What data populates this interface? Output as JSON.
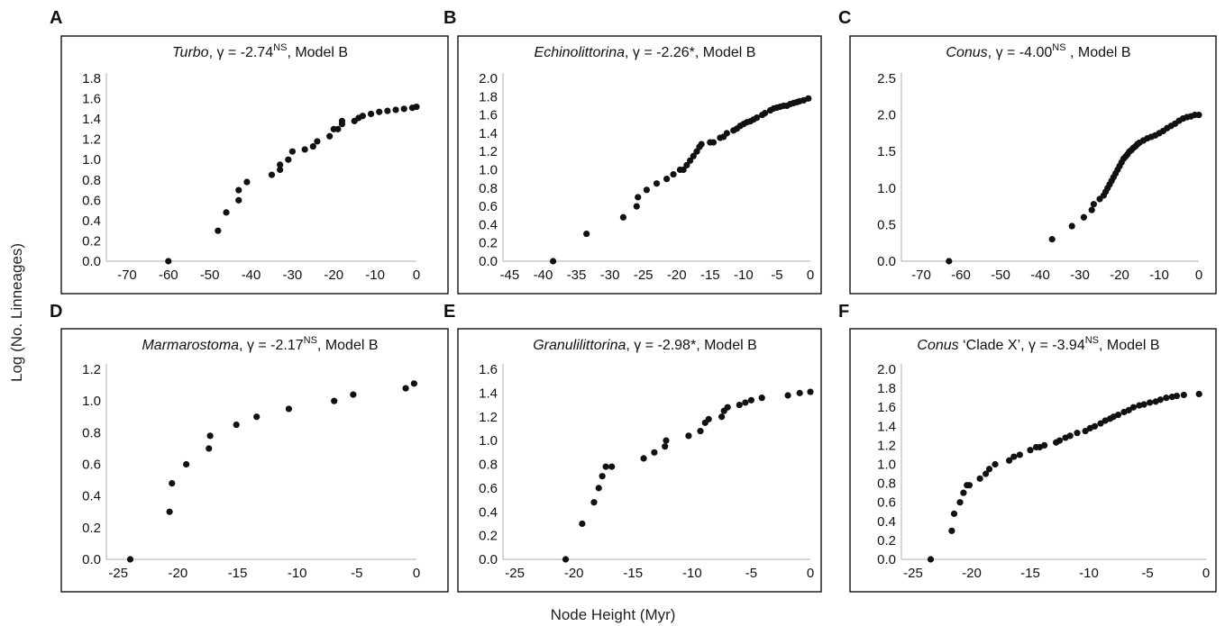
{
  "figure": {
    "ylabel": "Log (No. Linneages)",
    "xlabel": "Node Height (Myr)"
  },
  "chart_data": [
    {
      "type": "scatter",
      "panel": "A",
      "title_italic": "Turbo",
      "title_rest": ", γ = -2.74",
      "title_sup": "NS",
      "title_model": ",  Model B",
      "xlim": [
        -75,
        0
      ],
      "ylim": [
        0,
        1.8
      ],
      "xticks": [
        -70,
        -60,
        -50,
        -40,
        -30,
        -20,
        -10,
        0
      ],
      "yticks": [
        0.0,
        0.2,
        0.4,
        0.6,
        0.8,
        1.0,
        1.2,
        1.4,
        1.6,
        1.8
      ],
      "ytick_decimals": 1,
      "series": [
        {
          "x": [
            -60,
            -48,
            -46,
            -43,
            -43,
            -41,
            -35,
            -33,
            -33,
            -31,
            -30,
            -27,
            -25,
            -24,
            -21,
            -20,
            -19,
            -18,
            -18,
            -15,
            -14,
            -13,
            -11,
            -9,
            -7,
            -5,
            -3,
            -1,
            0
          ],
          "y": [
            0.0,
            0.3,
            0.48,
            0.6,
            0.7,
            0.78,
            0.85,
            0.9,
            0.95,
            1.0,
            1.08,
            1.1,
            1.13,
            1.18,
            1.23,
            1.3,
            1.3,
            1.35,
            1.38,
            1.38,
            1.41,
            1.43,
            1.45,
            1.47,
            1.48,
            1.49,
            1.5,
            1.51,
            1.52
          ]
        }
      ]
    },
    {
      "type": "scatter",
      "panel": "B",
      "title_italic": "Echinolittorina",
      "title_rest": ", γ = -2.26*",
      "title_sup": "",
      "title_model": ",  Model B",
      "xlim": [
        -46,
        0
      ],
      "ylim": [
        0,
        2.0
      ],
      "xticks": [
        -45,
        -40,
        -35,
        -30,
        -25,
        -20,
        -15,
        -10,
        -5,
        0
      ],
      "yticks": [
        0.0,
        0.2,
        0.4,
        0.6,
        0.8,
        1.0,
        1.2,
        1.4,
        1.6,
        1.8,
        2.0
      ],
      "ytick_decimals": 1,
      "series": [
        {
          "x": [
            -38.5,
            -33.5,
            -28,
            -26,
            -25.8,
            -24.5,
            -23,
            -21.5,
            -20.5,
            -19.5,
            -19,
            -18.5,
            -18,
            -17.5,
            -17,
            -16.6,
            -16.3,
            -15,
            -14.5,
            -13.5,
            -13,
            -12.5,
            -11.5,
            -11,
            -10.5,
            -10,
            -9.5,
            -9,
            -8.5,
            -8,
            -7.2,
            -6.8,
            -6,
            -5.5,
            -5,
            -4.5,
            -4,
            -3.5,
            -3,
            -2.5,
            -2,
            -1.6,
            -1,
            -0.3
          ],
          "y": [
            0.0,
            0.3,
            0.48,
            0.6,
            0.7,
            0.78,
            0.85,
            0.9,
            0.95,
            1.0,
            1.0,
            1.05,
            1.1,
            1.15,
            1.2,
            1.25,
            1.28,
            1.3,
            1.3,
            1.35,
            1.36,
            1.4,
            1.43,
            1.45,
            1.48,
            1.5,
            1.52,
            1.53,
            1.55,
            1.57,
            1.6,
            1.62,
            1.65,
            1.67,
            1.68,
            1.69,
            1.7,
            1.7,
            1.72,
            1.73,
            1.74,
            1.75,
            1.76,
            1.78
          ]
        }
      ]
    },
    {
      "type": "scatter",
      "panel": "C",
      "title_italic": "Conus",
      "title_rest": ", γ = -4.00",
      "title_sup": "NS",
      "title_model": " ,  Model B",
      "xlim": [
        -75,
        0
      ],
      "ylim": [
        0,
        2.5
      ],
      "xticks": [
        -70,
        -60,
        -50,
        -40,
        -30,
        -20,
        -10,
        0
      ],
      "yticks": [
        0.0,
        0.5,
        1.0,
        1.5,
        2.0,
        2.5
      ],
      "ytick_decimals": 1,
      "series": [
        {
          "x": [
            -63,
            -37,
            -32,
            -29,
            -27,
            -26.5,
            -25,
            -24,
            -23.5,
            -23,
            -22.5,
            -22,
            -21.5,
            -21,
            -20.5,
            -20,
            -19.5,
            -19,
            -18.5,
            -18,
            -17.5,
            -17,
            -16.5,
            -16,
            -15.5,
            -15,
            -14,
            -13,
            -12,
            -11,
            -10,
            -9,
            -8,
            -7,
            -6,
            -5,
            -4,
            -3,
            -2,
            -1,
            0
          ],
          "y": [
            0.0,
            0.3,
            0.48,
            0.6,
            0.7,
            0.78,
            0.85,
            0.9,
            0.95,
            1.0,
            1.05,
            1.1,
            1.15,
            1.2,
            1.25,
            1.3,
            1.35,
            1.4,
            1.43,
            1.46,
            1.5,
            1.52,
            1.55,
            1.57,
            1.6,
            1.62,
            1.65,
            1.68,
            1.7,
            1.72,
            1.75,
            1.78,
            1.82,
            1.85,
            1.88,
            1.92,
            1.95,
            1.97,
            1.98,
            2.0,
            2.0
          ]
        }
      ]
    },
    {
      "type": "scatter",
      "panel": "D",
      "title_italic": "Marmarostoma",
      "title_rest": ", γ = -2.17",
      "title_sup": "NS",
      "title_model": ",  Model B",
      "xlim": [
        -26,
        0
      ],
      "ylim": [
        0,
        1.2
      ],
      "xticks": [
        -25,
        -20,
        -15,
        -10,
        -5,
        0
      ],
      "yticks": [
        0.0,
        0.2,
        0.4,
        0.6,
        0.8,
        1.0,
        1.2
      ],
      "ytick_decimals": 1,
      "series": [
        {
          "x": [
            -24,
            -20.7,
            -20.5,
            -19.3,
            -17.4,
            -17.3,
            -15.1,
            -13.4,
            -10.7,
            -6.9,
            -5.3,
            -0.9,
            -0.2
          ],
          "y": [
            0.0,
            0.3,
            0.48,
            0.6,
            0.7,
            0.78,
            0.85,
            0.9,
            0.95,
            1.0,
            1.04,
            1.08,
            1.11
          ]
        }
      ]
    },
    {
      "type": "scatter",
      "panel": "E",
      "title_italic": "Granulilittorina",
      "title_rest": ", γ = -2.98*",
      "title_sup": "",
      "title_model": ",  Model B",
      "xlim": [
        -26,
        0
      ],
      "ylim": [
        0,
        1.6
      ],
      "xticks": [
        -25,
        -20,
        -15,
        -10,
        -5,
        0
      ],
      "yticks": [
        0.0,
        0.2,
        0.4,
        0.6,
        0.8,
        1.0,
        1.2,
        1.4,
        1.6
      ],
      "ytick_decimals": 1,
      "series": [
        {
          "x": [
            -20.7,
            -19.3,
            -18.3,
            -17.9,
            -17.6,
            -17.3,
            -16.8,
            -14.1,
            -13.2,
            -12.3,
            -12.2,
            -10.3,
            -9.3,
            -8.9,
            -8.6,
            -7.5,
            -7.3,
            -7.0,
            -6.0,
            -5.5,
            -5.0,
            -4.1,
            -1.9,
            -0.9,
            0
          ],
          "y": [
            0.0,
            0.3,
            0.48,
            0.6,
            0.7,
            0.78,
            0.78,
            0.85,
            0.9,
            0.95,
            1.0,
            1.04,
            1.08,
            1.15,
            1.18,
            1.2,
            1.25,
            1.28,
            1.3,
            1.32,
            1.34,
            1.36,
            1.38,
            1.4,
            1.41
          ]
        }
      ]
    },
    {
      "type": "scatter",
      "panel": "F",
      "title_italic": "Conus",
      "title_rest": " ‘Clade X’, γ = -3.94",
      "title_sup": "NS",
      "title_model": ",  Model B",
      "xlim": [
        -26,
        0
      ],
      "ylim": [
        0,
        2.0
      ],
      "xticks": [
        -25,
        -20,
        -15,
        -10,
        -5,
        0
      ],
      "yticks": [
        0.0,
        0.2,
        0.4,
        0.6,
        0.8,
        1.0,
        1.2,
        1.4,
        1.6,
        1.8,
        2.0
      ],
      "ytick_decimals": 1,
      "series": [
        {
          "x": [
            -23.5,
            -21.7,
            -21.5,
            -21.0,
            -20.7,
            -20.4,
            -20.2,
            -19.3,
            -18.8,
            -18.5,
            -18.0,
            -16.8,
            -16.4,
            -15.9,
            -15.0,
            -14.5,
            -14.2,
            -13.8,
            -12.8,
            -12.5,
            -12.0,
            -11.6,
            -11.0,
            -10.3,
            -9.9,
            -9.5,
            -9.0,
            -8.6,
            -8.2,
            -7.9,
            -7.5,
            -7.0,
            -6.6,
            -6.2,
            -5.7,
            -5.3,
            -4.8,
            -4.3,
            -3.9,
            -3.4,
            -2.9,
            -2.5,
            -1.9,
            -0.6
          ],
          "y": [
            0.0,
            0.3,
            0.48,
            0.6,
            0.7,
            0.78,
            0.78,
            0.85,
            0.9,
            0.95,
            1.0,
            1.04,
            1.08,
            1.1,
            1.15,
            1.18,
            1.18,
            1.2,
            1.23,
            1.25,
            1.28,
            1.3,
            1.33,
            1.35,
            1.38,
            1.4,
            1.43,
            1.46,
            1.48,
            1.5,
            1.52,
            1.55,
            1.57,
            1.6,
            1.62,
            1.63,
            1.65,
            1.66,
            1.68,
            1.7,
            1.71,
            1.72,
            1.73,
            1.74
          ]
        }
      ]
    }
  ]
}
